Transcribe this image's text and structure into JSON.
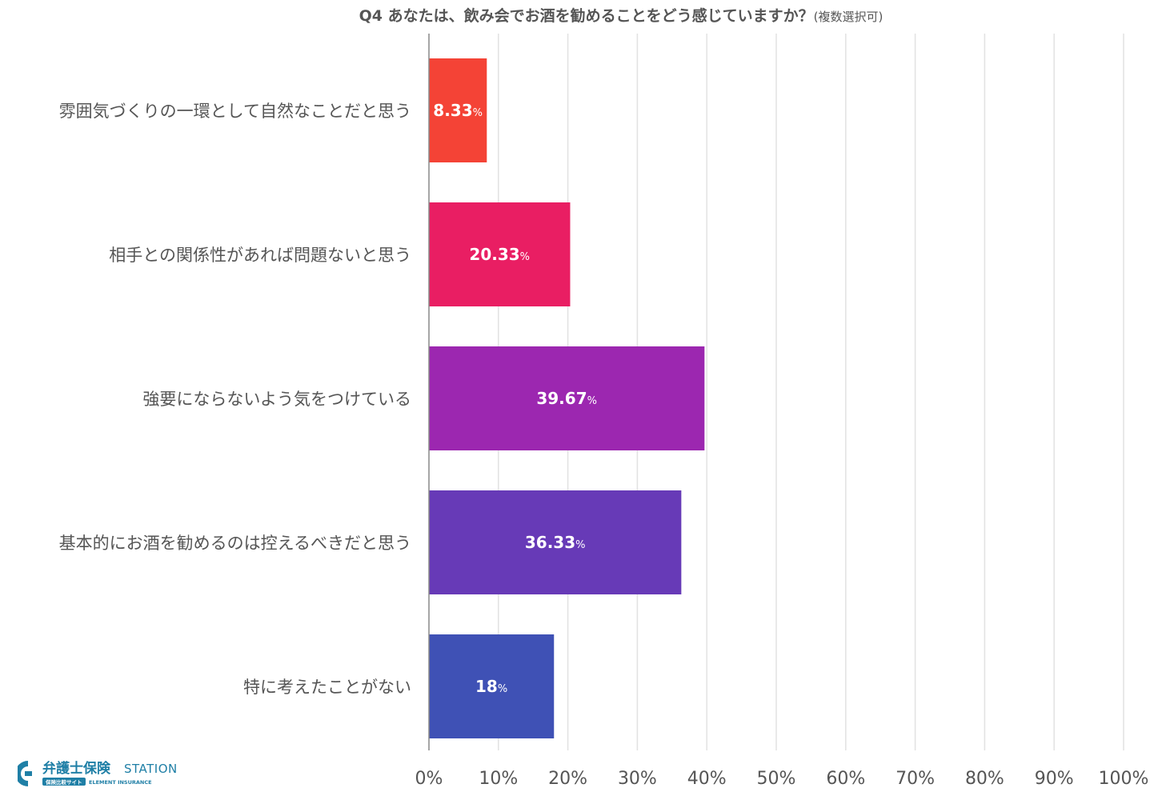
{
  "chart_data": {
    "type": "bar",
    "orientation": "horizontal",
    "title": "Q4 あなたは、飲み会でお酒を勧めることをどう感じていますか？",
    "subtitle": "(複数選択可)",
    "categories": [
      "雰囲気づくりの一環として自然なことだと思う",
      "相手との関係性があれば問題ないと思う",
      "強要にならないよう気をつけている",
      "基本的にお酒を勧めるのは控えるべきだと思う",
      "特に考えたことがない"
    ],
    "values": [
      8.33,
      20.33,
      39.67,
      36.33,
      18
    ],
    "value_labels": [
      "8.33",
      "20.33",
      "39.67",
      "36.33",
      "18"
    ],
    "value_unit": "%",
    "colors": [
      "#f44336",
      "#e91e63",
      "#9c27b0",
      "#673ab7",
      "#3f51b5"
    ],
    "xlim": [
      0,
      100
    ],
    "ticks": [
      0,
      10,
      20,
      30,
      40,
      50,
      60,
      70,
      80,
      90,
      100
    ],
    "tick_labels": [
      "0%",
      "10%",
      "20%",
      "30%",
      "40%",
      "50%",
      "60%",
      "70%",
      "80%",
      "90%",
      "100%"
    ],
    "grid": true,
    "xlabel": "",
    "ylabel": ""
  },
  "logo": {
    "main": "弁護士保険",
    "station": "STATION",
    "tagline": "保険比較サイト",
    "company": "ELEMENT INSURANCE",
    "color": "#1f7fa6"
  }
}
